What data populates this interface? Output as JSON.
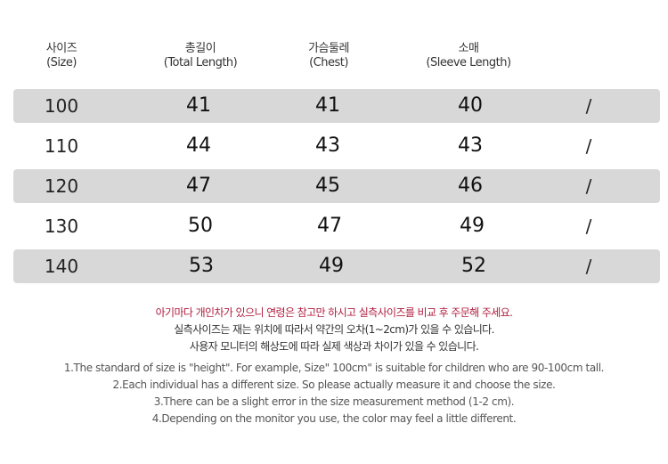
{
  "table": {
    "headers": [
      {
        "ko": "사이즈",
        "en": "(Size)"
      },
      {
        "ko": "총길이",
        "en": "(Total Length)"
      },
      {
        "ko": "가슴둘레",
        "en": "(Chest)"
      },
      {
        "ko": "소매",
        "en": "(Sleeve Length)"
      }
    ],
    "rows": [
      {
        "size": "100",
        "total": "41",
        "chest": "41",
        "sleeve": "40",
        "extra": "/"
      },
      {
        "size": "110",
        "total": "44",
        "chest": "43",
        "sleeve": "43",
        "extra": "/"
      },
      {
        "size": "120",
        "total": "47",
        "chest": "45",
        "sleeve": "46",
        "extra": "/"
      },
      {
        "size": "130",
        "total": "50",
        "chest": "47",
        "sleeve": "49",
        "extra": "/"
      },
      {
        "size": "140",
        "total": "53",
        "chest": "49",
        "sleeve": "52",
        "extra": "/"
      }
    ]
  },
  "notes_ko": [
    "아기마다 개인차가 있으니 연령은 참고만 하시고 실측사이즈를 비교 후 주문해 주세요.",
    "실측사이즈는 재는 위치에 따라서 약간의 오차(1~2cm)가 있을 수 있습니다.",
    "사용자 모니터의 해상도에 따라 실제 색상과 차이가 있을 수 있습니다."
  ],
  "notes_en": [
    "1.The standard of size is \"height\". For example,  Size\" 100cm\" is suitable for children who are 90-100cm tall.",
    "2.Each individual has a different size. So please actually measure it and choose the size.",
    "3.There can be a slight error in the size measurement method (1-2 cm).",
    "4.Depending on the monitor you use, the color may feel a little different."
  ],
  "colors": {
    "row_shade": "#d8d8d8",
    "accent_red": "#b02040"
  }
}
